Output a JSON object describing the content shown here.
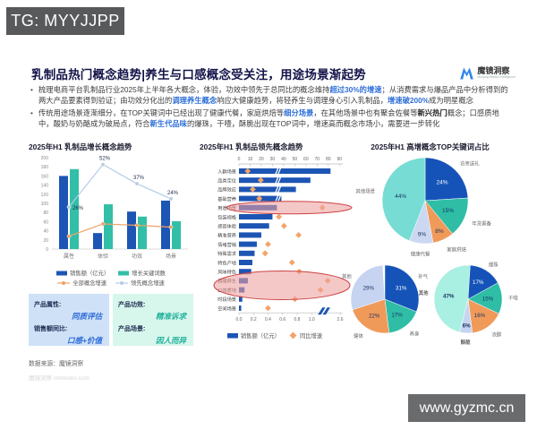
{
  "overlays": {
    "tg_banner": "TG: MYYJJPP",
    "watermark": "www.gyzmc.cn"
  },
  "header": {
    "title": "乳制品热门概念趋势|养生与口感概念受关注，用途场景渐起势",
    "logo_name": "魔镜洞察",
    "logo_subtitle": "Moojing Market Intelligence",
    "logo_color": "#2f86e6"
  },
  "bullets": [
    {
      "segments": [
        {
          "t": "梳理电商平台乳制品行业2025年上半年各大概念，体验，功效中领先于总同比的概念维持",
          "s": "p"
        },
        {
          "t": "超过30%的增速",
          "s": "hl"
        },
        {
          "t": "；从消费需求与爆品产品中分析得到的两大产品要素得到验证；由功效分化出的",
          "s": "p"
        },
        {
          "t": "调理养生概念",
          "s": "hl"
        },
        {
          "t": "响应大健康趋势，将轻养生与调理身心引入乳制品，",
          "s": "p"
        },
        {
          "t": "增速破200%",
          "s": "hl"
        },
        {
          "t": "成为明星概念",
          "s": "p"
        }
      ]
    },
    {
      "segments": [
        {
          "t": "传统用途场景逐渐细分，在TOP关键词中已经出现了健康代餐，家庭烘焙等",
          "s": "p"
        },
        {
          "t": "细分场景",
          "s": "hl"
        },
        {
          "t": "，在其他场景中也有聚会佐餐等",
          "s": "p"
        },
        {
          "t": "新兴热门",
          "s": "b"
        },
        {
          "t": "概念；口感质地中，酸奶与奶酪成为破局点，符合",
          "s": "p"
        },
        {
          "t": "新生代品味",
          "s": "hl"
        },
        {
          "t": "的爆珠，干噎，酥脆出现在TOP词中，增速高而概念市场小，需要进一步转化",
          "s": "p"
        }
      ]
    }
  ],
  "chart_data": [
    {
      "type": "bar",
      "title": "2025年H1 乳制品增长概念趋势",
      "categories": [
        "属性",
        "体验",
        "功效",
        "场景"
      ],
      "ylim": [
        0,
        200
      ],
      "ytick_step": 20,
      "series": [
        {
          "name": "销售额（亿元）",
          "values": [
            160,
            35,
            82,
            106
          ],
          "color": "#1d55b4"
        },
        {
          "name": "增长关键词数",
          "values": [
            175,
            98,
            71,
            61
          ],
          "color": "#33bfa7"
        }
      ],
      "lines": [
        {
          "name": "全部概念增速",
          "values": [
            28,
            55,
            52,
            48
          ],
          "color": "#eca266"
        },
        {
          "name": "领先概念增速",
          "values": [
            92,
            185,
            143,
            110
          ],
          "labels": [
            "26%",
            "52%",
            "37%",
            "24%"
          ],
          "color": "#b5cce6"
        }
      ]
    },
    {
      "type": "bar-horizontal",
      "title": "2025年H1 乳制品领先概念趋势",
      "categories": [
        "人群场景",
        "品类定位",
        "品牌效应",
        "基础营养",
        "用途场景",
        "包装规格",
        "感官体验",
        "精准营养",
        "情绪营销",
        "特殊需求",
        "特色产地",
        "风味特色",
        "调理养生",
        "口感质地",
        "时段场景",
        "空间场景"
      ],
      "series": [
        {
          "name": "销售额（亿元）",
          "axis": "top",
          "values": [
            82,
            64,
            51,
            38,
            34,
            30,
            27,
            20,
            16,
            14,
            12,
            11,
            8,
            5,
            3,
            2
          ],
          "color": "#1d55b4"
        },
        {
          "name": "同比增速",
          "axis": "bottom",
          "marker": "diamond",
          "values": [
            0.12,
            0.3,
            0.19,
            0.28,
            1.6,
            0.55,
            0.62,
            0.82,
            0.4,
            0.36,
            0.73,
            0.83,
            1.9,
            1.5,
            0.77,
            0.4
          ],
          "color": "#f2a469"
        }
      ],
      "top_axis": {
        "ticks": [
          0,
          10,
          20,
          30,
          40,
          50,
          60,
          70,
          80,
          90
        ],
        "max": 93
      },
      "bottom_axis": {
        "ticks": [
          [
            "0.0",
            0
          ],
          [
            "0.2",
            0.2
          ],
          [
            "0.4",
            0.4
          ],
          [
            "0.6",
            0.6
          ],
          [
            "0.8",
            0.8
          ],
          [
            "1.0",
            1.0
          ],
          [
            "2.6",
            2.6
          ]
        ],
        "break_after": 1.0
      },
      "bar_breaks": {
        "rows": [
          0,
          1,
          2,
          3
        ],
        "at": 34
      },
      "highlight_ellipses": [
        {
          "rows": [
            4
          ]
        },
        {
          "rows": [
            12,
            13
          ]
        }
      ],
      "highlight_fill": "#eea0a0",
      "highlight_stroke": "#cc4242"
    },
    {
      "type": "pie",
      "title": "2025年H1 高增概念TOP关键词占比",
      "slices": [
        {
          "label": "访亲送礼",
          "pct": 24,
          "color": "#1553b8",
          "text": "#ffffff"
        },
        {
          "label": "年货置备",
          "pct": 15,
          "color": "#2fbda6",
          "text": "#16335c"
        },
        {
          "label": "家庭烘焙",
          "pct": 8,
          "color": "#f09a5a",
          "text": "#16335c"
        },
        {
          "label": "健康代餐",
          "pct": 9,
          "color": "#ccd8f2",
          "text": "#16335c"
        },
        {
          "label": "其他场景",
          "pct": 44,
          "color": "#77ddd4",
          "text": "#16335c"
        }
      ]
    },
    {
      "type": "pie",
      "title": "",
      "slices": [
        {
          "label": "补气",
          "pct": 31,
          "color": "#1553b8",
          "text": "#ffffff"
        },
        {
          "label": "养身",
          "pct": 17,
          "color": "#2fbda6",
          "text": "#16335c"
        },
        {
          "label": "健体",
          "pct": 22,
          "color": "#f09a5a",
          "text": "#16335c"
        },
        {
          "label": "其他",
          "pct": 29,
          "color": "#c6d4f2",
          "text": "#16335c"
        }
      ]
    },
    {
      "type": "pie",
      "title": "",
      "slices": [
        {
          "label": "爆珠",
          "pct": 17,
          "color": "#1553b8",
          "text": "#ffffff"
        },
        {
          "label": "干噎",
          "pct": 15,
          "color": "#2fbda6",
          "text": "#16335c"
        },
        {
          "label": "浓醇",
          "pct": 16,
          "color": "#f09a5a",
          "text": "#16335c"
        },
        {
          "label": "酥脆",
          "pct": 6,
          "color": "#c6d4f2",
          "text": "#16335c",
          "bold": true
        },
        {
          "label": "其他",
          "pct": 47,
          "color": "#a9efe2",
          "text": "#16335c",
          "bold": true
        }
      ]
    }
  ],
  "insight_boxes": [
    {
      "bg": "#cfe1f7",
      "accent": "#2e6bd8",
      "rows": [
        {
          "label": "产品属性:",
          "value": "同质评估"
        },
        {
          "label": "销售额同比:",
          "value": "口感+价值"
        }
      ]
    },
    {
      "bg": "#d7f6ec",
      "accent": "#1fb09a",
      "rows": [
        {
          "label": "产品功效:",
          "value": "精准诉求"
        },
        {
          "label": "产品场景:",
          "value": "因人而异"
        }
      ]
    }
  ],
  "source": {
    "line1": "数据来源：魔镜洞察",
    "line2": "魔镜洞察  mktindex.com"
  }
}
